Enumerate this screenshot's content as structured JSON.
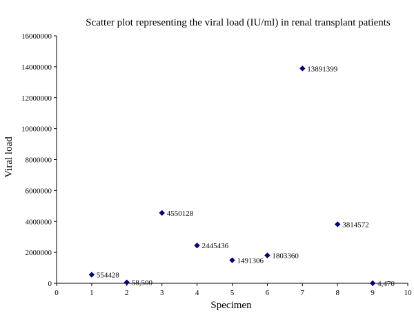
{
  "chart_data": {
    "type": "scatter",
    "title": "Scatter plot representing the viral load (IU/ml) in renal transplant patients",
    "xlabel": "Specimen",
    "ylabel": "Viral load",
    "xlim": [
      0,
      10
    ],
    "ylim": [
      0,
      16000000
    ],
    "x_ticks": [
      "0",
      "1",
      "2",
      "3",
      "4",
      "5",
      "6",
      "7",
      "8",
      "9",
      "10"
    ],
    "y_ticks": [
      "0",
      "2000000",
      "4000000",
      "6000000",
      "8000000",
      "10000000",
      "12000000",
      "14000000",
      "16000000"
    ],
    "grid": false,
    "legend": "none",
    "marker": "diamond",
    "marker_color": "#000080",
    "points": [
      {
        "x": 1,
        "y": 554428,
        "label": "554428"
      },
      {
        "x": 2,
        "y": 58500,
        "label": "58,500"
      },
      {
        "x": 3,
        "y": 4550128,
        "label": "4550128"
      },
      {
        "x": 4,
        "y": 2445436,
        "label": "2445436"
      },
      {
        "x": 5,
        "y": 1491306,
        "label": "1491306"
      },
      {
        "x": 6,
        "y": 1803360,
        "label": "1803360"
      },
      {
        "x": 7,
        "y": 13891399,
        "label": "13891399"
      },
      {
        "x": 8,
        "y": 3814572,
        "label": "3814572"
      },
      {
        "x": 9,
        "y": 4470,
        "label": "4,470"
      }
    ]
  }
}
